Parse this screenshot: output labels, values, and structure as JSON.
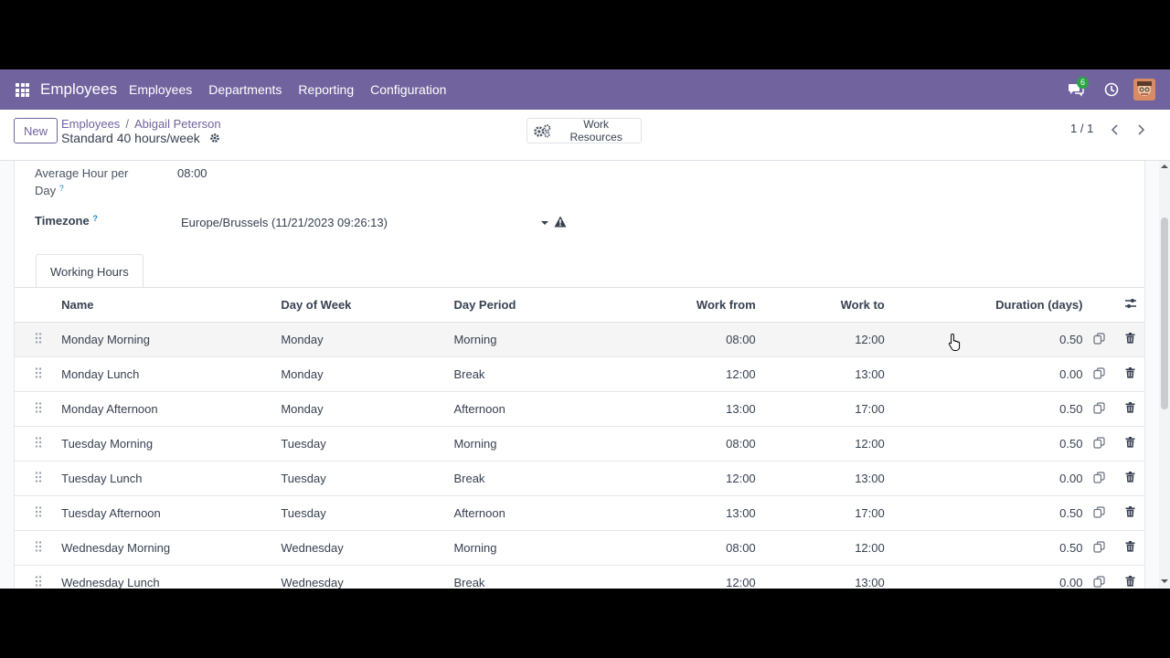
{
  "navbar": {
    "brand": "Employees",
    "menu": [
      "Employees",
      "Departments",
      "Reporting",
      "Configuration"
    ],
    "chat_count": "6",
    "accent": "#71639e"
  },
  "control_panel": {
    "new_label": "New",
    "breadcrumb": [
      "Employees",
      "Abigail Peterson"
    ],
    "record_title": "Standard 40 hours/week",
    "work_resources_label": "Work Resources",
    "pager": "1 / 1"
  },
  "form": {
    "avg_hour_label_1": "Average Hour per",
    "avg_hour_label_2": "Day",
    "avg_hour_value": "08:00",
    "timezone_label": "Timezone",
    "timezone_value": "Europe/Brussels (11/21/2023 09:26:13)",
    "help_mark": "?"
  },
  "tabs": [
    "Working Hours"
  ],
  "table": {
    "columns": [
      "Name",
      "Day of Week",
      "Day Period",
      "Work from",
      "Work to",
      "Duration (days)"
    ],
    "rows": [
      [
        "Monday Morning",
        "Monday",
        "Morning",
        "08:00",
        "12:00",
        "0.50"
      ],
      [
        "Monday Lunch",
        "Monday",
        "Break",
        "12:00",
        "13:00",
        "0.00"
      ],
      [
        "Monday Afternoon",
        "Monday",
        "Afternoon",
        "13:00",
        "17:00",
        "0.50"
      ],
      [
        "Tuesday Morning",
        "Tuesday",
        "Morning",
        "08:00",
        "12:00",
        "0.50"
      ],
      [
        "Tuesday Lunch",
        "Tuesday",
        "Break",
        "12:00",
        "13:00",
        "0.00"
      ],
      [
        "Tuesday Afternoon",
        "Tuesday",
        "Afternoon",
        "13:00",
        "17:00",
        "0.50"
      ],
      [
        "Wednesday Morning",
        "Wednesday",
        "Morning",
        "08:00",
        "12:00",
        "0.50"
      ],
      [
        "Wednesday Lunch",
        "Wednesday",
        "Break",
        "12:00",
        "13:00",
        "0.00"
      ]
    ]
  }
}
